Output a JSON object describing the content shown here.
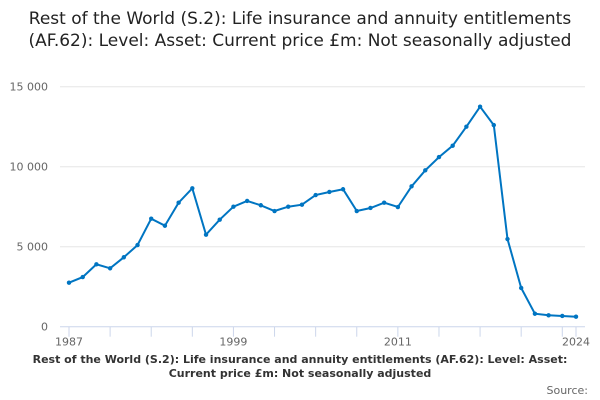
{
  "chart_data": {
    "type": "line",
    "title": "Rest of the World (S.2): Life insurance and annuity entitlements (AF.62): Level: Asset: Current price £m: Not seasonally adjusted",
    "xlabel": "",
    "ylabel": "",
    "x": [
      1987,
      1988,
      1989,
      1990,
      1991,
      1992,
      1993,
      1994,
      1995,
      1996,
      1997,
      1998,
      1999,
      2000,
      2001,
      2002,
      2003,
      2004,
      2005,
      2006,
      2007,
      2008,
      2009,
      2010,
      2011,
      2012,
      2013,
      2014,
      2015,
      2016,
      2017,
      2018,
      2019,
      2020,
      2021,
      2022,
      2023,
      2024
    ],
    "values": [
      2750,
      3100,
      3900,
      3650,
      4340,
      5100,
      6750,
      6310,
      7750,
      8650,
      5750,
      6690,
      7500,
      7860,
      7590,
      7230,
      7500,
      7625,
      8230,
      8420,
      8590,
      7230,
      7420,
      7750,
      7480,
      8775,
      9775,
      10600,
      11310,
      12500,
      13750,
      12600,
      5480,
      2420,
      810,
      710,
      670,
      625
    ],
    "ylim": [
      0,
      15000
    ],
    "y_ticks": [
      "0",
      "5 000",
      "10 000",
      "15 000"
    ],
    "x_ticks": [
      "1987",
      "1999",
      "2011",
      "2024"
    ],
    "grid": "horizontal",
    "color": "#0075c2"
  },
  "caption": "Rest of the World (S.2): Life insurance and annuity entitlements (AF.62): Level: Asset: Current price £m: Not seasonally adjusted",
  "source_label": "Source:"
}
